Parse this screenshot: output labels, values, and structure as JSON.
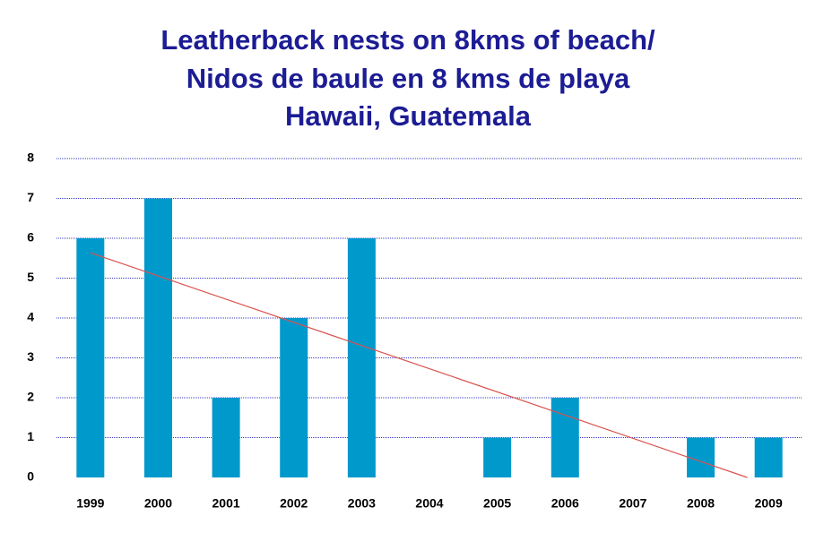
{
  "chart_data": {
    "type": "bar",
    "title": [
      "Leatherback nests on 8kms of beach/",
      "Nidos de baule en 8 kms de playa",
      "Hawaii, Guatemala"
    ],
    "categories": [
      "1999",
      "2000",
      "2001",
      "2002",
      "2003",
      "2004",
      "2005",
      "2006",
      "2007",
      "2008",
      "2009"
    ],
    "values": [
      6,
      7,
      2,
      4,
      6,
      0,
      1,
      2,
      0,
      1,
      1
    ],
    "color": "#0099cc",
    "ylim": [
      0,
      8
    ],
    "yticks": [
      0,
      1,
      2,
      3,
      4,
      5,
      6,
      7,
      8
    ],
    "grid": true,
    "trendline": {
      "type": "linear",
      "color": "#d9534f"
    }
  }
}
